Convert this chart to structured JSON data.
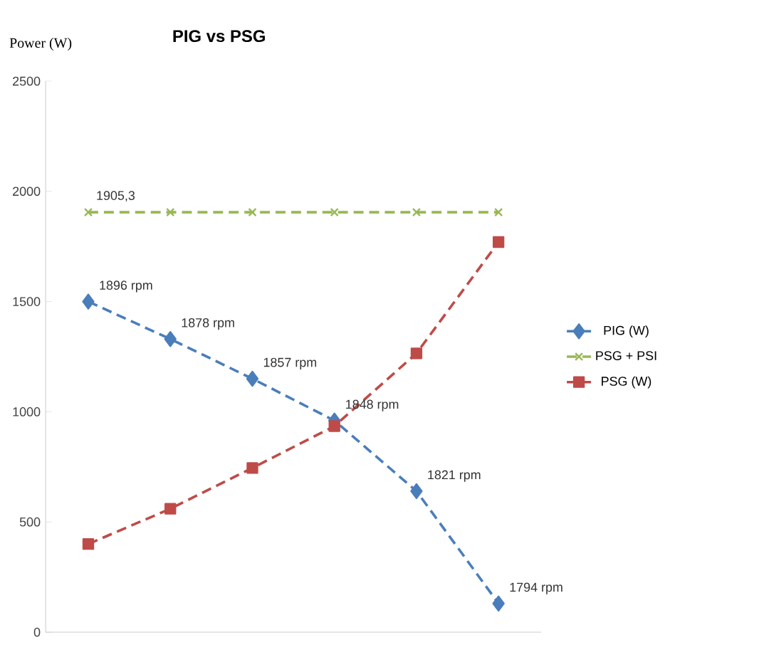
{
  "chart_data": {
    "type": "line",
    "title": "PIG vs PSG",
    "ylabel": "Power (W)",
    "categories": [
      null,
      null,
      null,
      null,
      null,
      null
    ],
    "series": [
      {
        "name": "PIG  (W)",
        "color": "#4a7ebb",
        "marker": "diamond",
        "values": [
          1500,
          1330,
          1150,
          960,
          640,
          130
        ]
      },
      {
        "name": "PSG + PSI",
        "color": "#98b954",
        "marker": "cross",
        "values": [
          1905.3,
          1905.3,
          1905.3,
          1905.3,
          1905.3,
          1905.3
        ],
        "value_labels": [
          "1905,3",
          null,
          null,
          null,
          null,
          null
        ]
      },
      {
        "name": "PSG (W)",
        "color": "#be4b48",
        "marker": "square",
        "values": [
          400,
          560,
          745,
          935,
          1265,
          1770
        ]
      }
    ],
    "annotations": [
      "1896 rpm",
      "1878 rpm",
      "1857 rpm",
      "1848 rpm",
      "1821 rpm",
      "1794 rpm"
    ],
    "line_style": "dashed",
    "ylim": [
      0,
      2500
    ],
    "yticks": [
      0,
      500,
      1000,
      1500,
      2000,
      2500
    ],
    "grid": false,
    "legend": "right"
  }
}
